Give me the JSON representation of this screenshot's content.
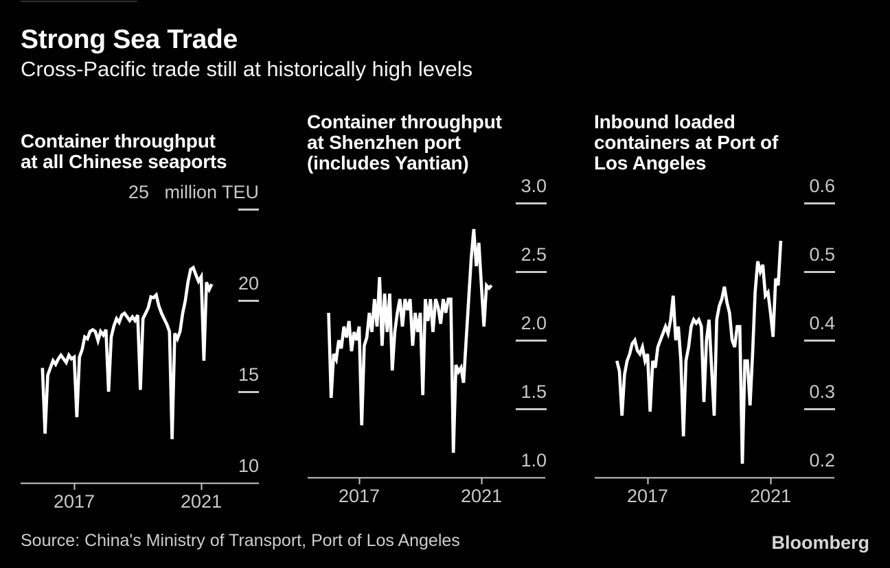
{
  "header": {
    "title": "Strong Sea Trade",
    "subtitle": "Cross-Pacific trade still at historically high levels"
  },
  "footer": {
    "source": "Source: China's Ministry of Transport, Port of Los Angeles",
    "brand": "Bloomberg"
  },
  "colors": {
    "background": "#000000",
    "line": "#ffffff",
    "title_text": "#ffffff",
    "axis_gray": "#c9c9c9"
  },
  "chart_data": [
    {
      "type": "line",
      "title": "Container throughput\nat all Chinese seaports",
      "unit": "million TEU",
      "x": {
        "frequency": "monthly",
        "start": "2016-01",
        "end": "2021-05"
      },
      "x_ticks": [
        {
          "year": 2017,
          "label": "2017"
        },
        {
          "year": 2021,
          "label": "2021"
        }
      ],
      "y_ticks": [
        {
          "value": 25,
          "label": "25   million TEU"
        },
        {
          "value": 20,
          "label": "20"
        },
        {
          "value": 15,
          "label": "15"
        },
        {
          "value": 10,
          "label": "10"
        }
      ],
      "ylim": [
        10,
        25
      ],
      "grid": false,
      "values": [
        16.3,
        12.7,
        15.9,
        16.3,
        16.7,
        16.5,
        16.8,
        17.0,
        16.8,
        16.6,
        17.0,
        16.8,
        16.9,
        13.6,
        16.9,
        17.3,
        18.0,
        17.9,
        18.3,
        18.4,
        18.3,
        17.8,
        18.3,
        18.1,
        18.4,
        15.0,
        18.0,
        18.6,
        19.0,
        18.8,
        19.2,
        19.3,
        19.1,
        18.9,
        19.1,
        18.9,
        19.2,
        15.1,
        19.0,
        19.3,
        19.6,
        20.2,
        20.15,
        20.3,
        19.7,
        19.3,
        19.0,
        18.7,
        18.3,
        12.4,
        18.2,
        17.9,
        18.3,
        19.3,
        20.0,
        21.0,
        21.7,
        21.8,
        21.4,
        21.05,
        21.3,
        16.7,
        21.0,
        20.6,
        20.9
      ]
    },
    {
      "type": "line",
      "title": "Container throughput\nat Shenzhen port\n(includes Yantian)",
      "unit": "million TEU",
      "x": {
        "frequency": "monthly",
        "start": "2016-01",
        "end": "2021-05"
      },
      "x_ticks": [
        {
          "year": 2017,
          "label": "2017"
        },
        {
          "year": 2021,
          "label": "2021"
        }
      ],
      "y_ticks": [
        {
          "value": 3.0,
          "label": "3.0"
        },
        {
          "value": 2.5,
          "label": "2.5"
        },
        {
          "value": 2.0,
          "label": "2.0"
        },
        {
          "value": 1.5,
          "label": "1.5"
        },
        {
          "value": 1.0,
          "label": "1.0"
        }
      ],
      "ylim": [
        1.0,
        3.0
      ],
      "grid": false,
      "values": [
        2.2,
        1.58,
        1.9,
        1.86,
        2.0,
        1.94,
        2.1,
        2.02,
        2.14,
        1.92,
        2.06,
        2.0,
        2.1,
        1.38,
        1.96,
        2.02,
        2.2,
        2.06,
        2.3,
        2.1,
        2.46,
        1.96,
        2.34,
        2.06,
        2.34,
        1.78,
        2.06,
        2.2,
        2.3,
        2.1,
        2.3,
        2.22,
        2.3,
        1.96,
        2.2,
        2.06,
        2.2,
        1.6,
        2.3,
        2.14,
        2.3,
        2.06,
        2.3,
        2.24,
        2.12,
        2.3,
        2.2,
        2.3,
        2.3,
        1.18,
        1.82,
        1.77,
        1.8,
        1.69,
        2.0,
        2.3,
        2.6,
        2.81,
        2.54,
        2.71,
        2.4,
        2.1,
        2.4,
        2.38,
        2.4
      ]
    },
    {
      "type": "line",
      "title": "Inbound loaded\ncontainers at Port of\nLos Angeles",
      "unit": "million TEU",
      "x": {
        "frequency": "monthly",
        "start": "2016-01",
        "end": "2021-05"
      },
      "x_ticks": [
        {
          "year": 2017,
          "label": "2017"
        },
        {
          "year": 2021,
          "label": "2021"
        }
      ],
      "y_ticks": [
        {
          "value": 0.6,
          "label": "0.6"
        },
        {
          "value": 0.5,
          "label": "0.5"
        },
        {
          "value": 0.4,
          "label": "0.4"
        },
        {
          "value": 0.3,
          "label": "0.3"
        },
        {
          "value": 0.2,
          "label": "0.2"
        }
      ],
      "ylim": [
        0.2,
        0.6
      ],
      "grid": false,
      "values": [
        0.37,
        0.355,
        0.29,
        0.35,
        0.37,
        0.38,
        0.395,
        0.4,
        0.385,
        0.38,
        0.39,
        0.37,
        0.38,
        0.296,
        0.37,
        0.36,
        0.39,
        0.4,
        0.41,
        0.42,
        0.41,
        0.43,
        0.465,
        0.4,
        0.42,
        0.37,
        0.26,
        0.37,
        0.39,
        0.42,
        0.43,
        0.425,
        0.43,
        0.42,
        0.31,
        0.4,
        0.43,
        0.36,
        0.29,
        0.43,
        0.45,
        0.46,
        0.478,
        0.455,
        0.44,
        0.4,
        0.39,
        0.42,
        0.42,
        0.22,
        0.37,
        0.37,
        0.305,
        0.38,
        0.47,
        0.515,
        0.5,
        0.51,
        0.465,
        0.47,
        0.44,
        0.405,
        0.49,
        0.48,
        0.545
      ]
    }
  ]
}
